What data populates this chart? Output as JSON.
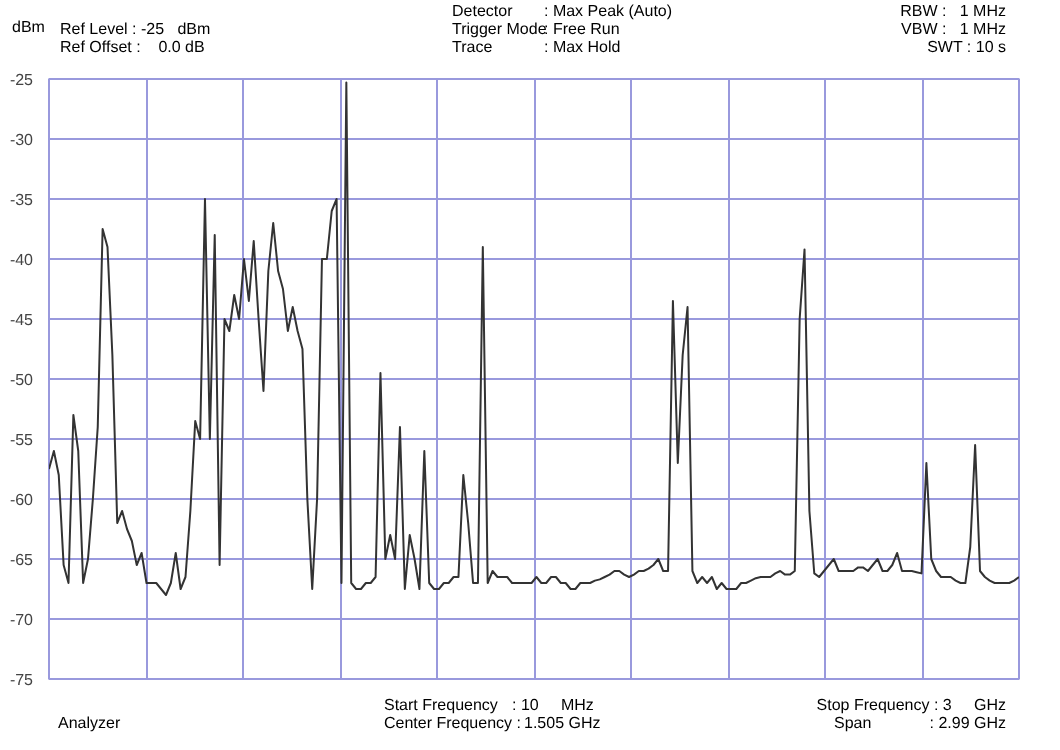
{
  "chart_data": {
    "type": "line",
    "ylabel": "dBm",
    "annotations": [
      "Ref Level : -25   dBm",
      "Ref Offset :    0.0 dB",
      "Detector",
      "Trigger Mode",
      "Trace",
      ": Max Peak (Auto)",
      ": Free Run",
      ": Max Hold",
      "RBW :   1 MHz",
      "VBW :   1 MHz",
      "SWT : 10 s",
      "Analyzer",
      "Start Frequency",
      ": 10     MHz",
      "Center Frequency :",
      "1.505 GHz",
      "Stop Frequency : 3     GHz",
      "Span",
      ": 2.99 GHz"
    ],
    "categories": [
      null,
      null,
      null,
      null,
      null,
      null,
      null,
      null,
      null,
      null,
      null,
      null,
      null,
      null,
      null,
      null,
      null,
      null,
      null,
      null,
      null,
      null,
      null,
      null,
      null,
      null,
      null,
      null,
      null,
      null,
      null,
      null,
      null,
      null,
      null,
      null,
      null,
      null,
      null,
      null,
      null,
      null,
      null,
      null,
      null,
      null,
      null,
      null,
      null,
      null,
      null,
      null,
      null,
      null,
      null,
      null,
      null,
      null,
      null,
      null,
      null,
      null,
      null,
      null,
      null,
      null,
      null,
      null,
      null,
      null,
      null,
      null,
      null,
      null,
      null,
      null,
      null,
      null,
      null,
      null,
      null,
      null,
      null,
      null,
      null,
      null,
      null,
      null,
      null,
      null,
      null,
      null,
      null,
      null,
      null,
      null,
      null,
      null,
      null,
      null,
      null,
      null,
      null,
      null,
      null,
      null,
      null,
      null,
      null,
      null,
      null,
      null,
      null,
      null,
      null,
      null,
      null,
      null,
      null,
      null,
      null,
      null,
      null,
      null,
      null,
      null,
      null,
      null,
      null,
      null,
      null,
      null,
      null,
      null,
      null,
      null,
      null,
      null,
      null,
      null,
      null,
      null,
      null,
      null,
      null,
      null,
      null,
      null,
      null,
      null,
      null,
      null,
      null,
      null,
      null,
      null,
      null,
      null,
      null,
      null,
      null,
      null,
      null,
      null,
      null,
      null,
      null,
      null,
      null,
      null,
      null,
      null,
      null,
      null,
      null,
      null,
      null,
      null,
      null,
      null,
      null,
      null,
      null,
      null,
      null,
      null,
      null,
      null,
      null,
      null,
      null,
      null,
      null,
      null,
      null,
      null,
      null,
      null,
      null,
      null
    ],
    "series": [
      {
        "color": "#333333",
        "values": [
          -57.5,
          -56,
          -58,
          -65.5,
          -67,
          -53,
          -56,
          -67,
          -65,
          -60,
          -54,
          -37.5,
          -39,
          -48,
          -62,
          -61,
          -62.5,
          -63.5,
          -65.5,
          -64.5,
          -67,
          -67,
          -67,
          -67.5,
          -68,
          -67,
          -64.5,
          -67.5,
          -66.5,
          -61,
          -53.5,
          -55,
          -35,
          -55,
          -38,
          -65.5,
          -45,
          -46,
          -43,
          -45,
          -40,
          -43.5,
          -38.5,
          -45,
          -51,
          -41,
          -37,
          -41,
          -42.5,
          -46,
          -44,
          -46,
          -47.5,
          -60,
          -67.5,
          -60,
          -40,
          -40,
          -36,
          -35,
          -67,
          -25.3,
          -67,
          -67.5,
          -67.5,
          -67,
          -67,
          -66.5,
          -49.5,
          -65,
          -63,
          -65,
          -54,
          -67.5,
          -63,
          -65,
          -67.5,
          -56,
          -67,
          -67.5,
          -67.5,
          -67,
          -67,
          -66.5,
          -66.5,
          -58,
          -62,
          -67,
          -67,
          -39,
          -67,
          -66,
          -66.5,
          -66.5,
          -66.5,
          -67,
          -67,
          -67,
          -67,
          -67,
          -66.5,
          -67,
          -67,
          -66.5,
          -66.5,
          -67,
          -67,
          -67.5,
          -67.5,
          -67,
          -67,
          -67,
          -66.8,
          -66.7,
          -66.5,
          -66.3,
          -66,
          -66,
          -66.3,
          -66.5,
          -66.3,
          -66,
          -66,
          -65.8,
          -65.5,
          -65,
          -66,
          -66,
          -43.5,
          -57,
          -48,
          -44,
          -66,
          -67,
          -66.5,
          -67,
          -66.5,
          -67.5,
          -67,
          -67.5,
          -67.5,
          -67.5,
          -67,
          -67,
          -66.8,
          -66.6,
          -66.5,
          -66.5,
          -66.5,
          -66.2,
          -66,
          -66.3,
          -66.3,
          -66,
          -45,
          -39.2,
          -61,
          -66.2,
          -66.5,
          -66,
          -65.5,
          -65,
          -66,
          -66,
          -66,
          -66,
          -65.7,
          -65.7,
          -66,
          -65.5,
          -65,
          -66,
          -66,
          -65.5,
          -64.5,
          -66,
          -66,
          -66,
          -66.1,
          -66.2,
          -57,
          -65,
          -66,
          -66.5,
          -66.5,
          -66.5,
          -66.8,
          -67,
          -67,
          -64,
          -55.5,
          -66,
          -66.5,
          -66.8,
          -67,
          -67,
          -67,
          -67,
          -66.8,
          -66.5
        ]
      }
    ],
    "ylim": [
      -75,
      -25
    ],
    "yticks": [
      -25,
      -30,
      -35,
      -40,
      -45,
      -50,
      -55,
      -60,
      -65,
      -70,
      -75
    ],
    "grid": true,
    "tick_labels": "y",
    "line_style": "solid"
  }
}
